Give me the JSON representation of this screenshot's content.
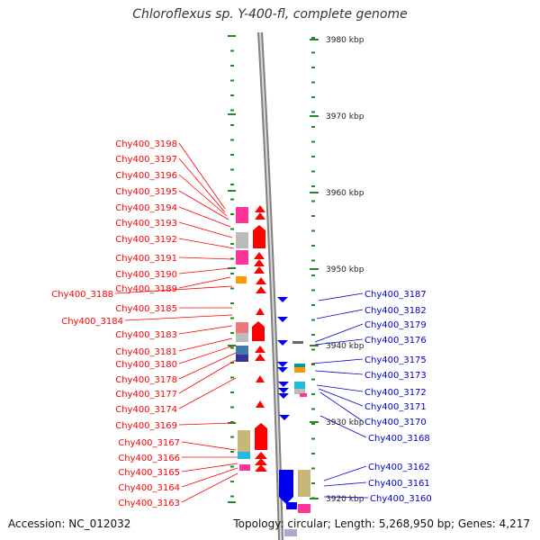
{
  "title": "Chloroflexus sp. Y-400-fl, complete genome",
  "footer": {
    "accession": "Accession: NC_012032",
    "topology": "Topology: circular; Length: 5,268,950 bp; Genes: 4,217"
  },
  "scale_labels": [
    "3980 kbp",
    "3970 kbp",
    "3960 kbp",
    "3950 kbp",
    "3940 kbp",
    "3930 kbp",
    "3920 kbp"
  ],
  "colors": {
    "forward_label": "#ff0000",
    "reverse_label": "#0000cc",
    "tick": "#228b22",
    "backbone": "#808080",
    "pink": "#ff3399",
    "light_pink": "#ff99cc",
    "grey": "#bbbbbb",
    "orange": "#ff9900",
    "salmon": "#ee7777",
    "steel_blue": "#4477aa",
    "navy": "#333399",
    "khaki": "#c8b878",
    "cyan": "#22bbdd",
    "teal": "#009999"
  },
  "forward_genes": [
    "Chy400_3198",
    "Chy400_3197",
    "Chy400_3196",
    "Chy400_3195",
    "Chy400_3194",
    "Chy400_3193",
    "Chy400_3192",
    "Chy400_3191",
    "Chy400_3190",
    "Chy400_3189",
    "Chy400_3188",
    "Chy400_3185",
    "Chy400_3184",
    "Chy400_3183",
    "Chy400_3181",
    "Chy400_3180",
    "Chy400_3178",
    "Chy400_3177",
    "Chy400_3174",
    "Chy400_3169",
    "Chy400_3167",
    "Chy400_3166",
    "Chy400_3165",
    "Chy400_3164",
    "Chy400_3163"
  ],
  "reverse_genes": [
    "Chy400_3187",
    "Chy400_3182",
    "Chy400_3179",
    "Chy400_3176",
    "Chy400_3175",
    "Chy400_3173",
    "Chy400_3172",
    "Chy400_3171",
    "Chy400_3170",
    "Chy400_3168",
    "Chy400_3162",
    "Chy400_3161",
    "Chy400_3160"
  ]
}
